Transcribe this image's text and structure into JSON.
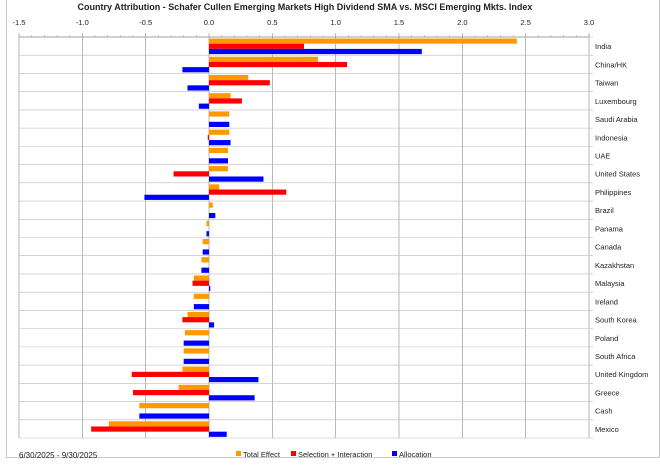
{
  "chart_data": {
    "type": "bar",
    "orientation": "horizontal",
    "title": "Country Attribution - Schafer Cullen Emerging Markets High Dividend SMA vs. MSCI Emerging Mkts. Index",
    "subtitle": "6/30/2025 - 9/30/2025",
    "xlim": [
      -1.5,
      3.0
    ],
    "xticks": [
      "-1.5",
      "-1.0",
      "-0.5",
      "0.0",
      "0.5",
      "1.0",
      "1.5",
      "2.0",
      "2.5",
      "3.0"
    ],
    "grid": true,
    "legend": "bottom",
    "categories": [
      "India",
      "China/HK",
      "Taiwan",
      "Luxembourg",
      "Saudi Arabia",
      "Indonesia",
      "UAE",
      "United States",
      "Philippines",
      "Brazil",
      "Panama",
      "Canada",
      "Kazakhstan",
      "Malaysia",
      "Ireland",
      "South Korea",
      "Poland",
      "South Africa",
      "United Kingdom",
      "Greece",
      "Cash",
      "Mexico"
    ],
    "series": [
      {
        "name": "Total Effect",
        "color": "#FF9900",
        "values": [
          2.43,
          0.86,
          0.31,
          0.17,
          0.16,
          0.16,
          0.15,
          0.15,
          0.08,
          0.03,
          -0.02,
          -0.05,
          -0.06,
          -0.12,
          -0.12,
          -0.17,
          -0.19,
          -0.2,
          -0.21,
          -0.24,
          -0.55,
          -0.79
        ]
      },
      {
        "name": "Selection + Interaction",
        "color": "#FF0000",
        "values": [
          0.75,
          1.09,
          0.48,
          0.26,
          0.0,
          -0.01,
          0.0,
          -0.28,
          0.61,
          0.0,
          0.0,
          0.0,
          0.0,
          -0.13,
          0.0,
          -0.21,
          0.0,
          0.0,
          -0.61,
          -0.6,
          0.0,
          -0.93
        ]
      },
      {
        "name": "Allocation",
        "color": "#0000FF",
        "values": [
          1.68,
          -0.21,
          -0.17,
          -0.08,
          0.16,
          0.17,
          0.15,
          0.43,
          -0.51,
          0.05,
          -0.02,
          -0.05,
          -0.06,
          0.01,
          -0.12,
          0.04,
          -0.2,
          -0.2,
          0.39,
          0.36,
          -0.55,
          0.14
        ]
      }
    ]
  }
}
